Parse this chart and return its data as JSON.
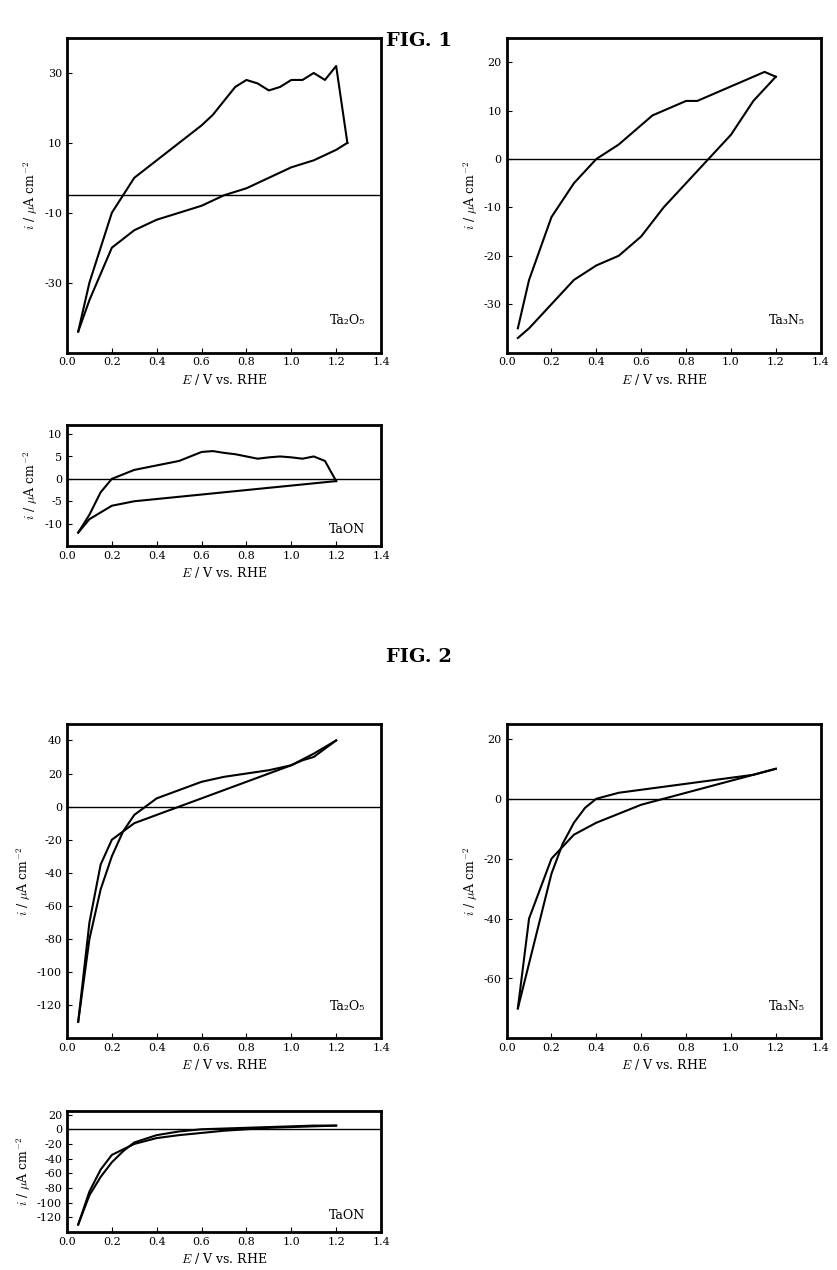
{
  "fig1_title": "FIG. 1",
  "fig2_title": "FIG. 2",
  "xlabel": "E / V vs. RHE",
  "ylabel": "i / μA cm⁻²",
  "background_color": "#ffffff",
  "plots": [
    {
      "label": "Ta₂O₅",
      "ylim": [
        -50,
        40
      ],
      "yticks": [
        -30,
        -10,
        10,
        30
      ],
      "hline": -5,
      "fig": 1,
      "pos": "top_left",
      "anodic": {
        "x": [
          0.05,
          0.1,
          0.2,
          0.3,
          0.4,
          0.5,
          0.6,
          0.65,
          0.7,
          0.75,
          0.8,
          0.85,
          0.9,
          0.95,
          1.0,
          1.05,
          1.1,
          1.15,
          1.2,
          1.25
        ],
        "y": [
          -44,
          -30,
          -10,
          0,
          5,
          10,
          15,
          18,
          22,
          26,
          28,
          27,
          25,
          26,
          28,
          28,
          30,
          28,
          32,
          10
        ]
      },
      "cathodic": {
        "x": [
          1.25,
          1.2,
          1.1,
          1.0,
          0.9,
          0.8,
          0.7,
          0.6,
          0.5,
          0.4,
          0.3,
          0.2,
          0.1,
          0.05
        ],
        "y": [
          10,
          8,
          5,
          3,
          0,
          -3,
          -5,
          -8,
          -10,
          -12,
          -15,
          -20,
          -35,
          -44
        ]
      }
    },
    {
      "label": "Ta₃N₅",
      "ylim": [
        -40,
        25
      ],
      "yticks": [
        -30,
        -20,
        -10,
        0,
        10,
        20
      ],
      "hline": 0,
      "fig": 1,
      "pos": "top_right",
      "anodic": {
        "x": [
          0.05,
          0.1,
          0.2,
          0.3,
          0.4,
          0.5,
          0.55,
          0.6,
          0.65,
          0.7,
          0.75,
          0.8,
          0.85,
          0.9,
          0.95,
          1.0,
          1.05,
          1.1,
          1.15,
          1.2
        ],
        "y": [
          -35,
          -25,
          -12,
          -5,
          0,
          3,
          5,
          7,
          9,
          10,
          11,
          12,
          12,
          13,
          14,
          15,
          16,
          17,
          18,
          17
        ]
      },
      "cathodic": {
        "x": [
          1.2,
          1.1,
          1.0,
          0.9,
          0.8,
          0.7,
          0.6,
          0.5,
          0.4,
          0.3,
          0.2,
          0.1,
          0.05
        ],
        "y": [
          17,
          12,
          5,
          0,
          -5,
          -10,
          -16,
          -20,
          -22,
          -25,
          -30,
          -35,
          -37
        ]
      }
    },
    {
      "label": "TaON",
      "ylim": [
        -15,
        12
      ],
      "yticks": [
        -10,
        -5,
        0,
        5,
        10
      ],
      "hline": 0,
      "fig": 1,
      "pos": "bottom_center",
      "anodic": {
        "x": [
          0.05,
          0.1,
          0.15,
          0.2,
          0.3,
          0.4,
          0.5,
          0.55,
          0.6,
          0.65,
          0.7,
          0.75,
          0.8,
          0.85,
          0.9,
          0.95,
          1.0,
          1.05,
          1.1,
          1.15,
          1.2
        ],
        "y": [
          -12,
          -8,
          -3,
          0,
          2,
          3,
          4,
          5,
          6,
          6.2,
          5.8,
          5.5,
          5,
          4.5,
          4.8,
          5,
          4.8,
          4.5,
          5,
          4,
          -0.5
        ]
      },
      "cathodic": {
        "x": [
          1.2,
          1.1,
          1.0,
          0.9,
          0.8,
          0.7,
          0.6,
          0.5,
          0.4,
          0.3,
          0.2,
          0.1,
          0.05
        ],
        "y": [
          -0.5,
          -1,
          -1.5,
          -2,
          -2.5,
          -3,
          -3.5,
          -4,
          -4.5,
          -5,
          -6,
          -9,
          -12
        ]
      }
    },
    {
      "label": "Ta₂O₅",
      "ylim": [
        -140,
        50
      ],
      "yticks": [
        -120,
        -100,
        -80,
        -60,
        -40,
        -20,
        0,
        20,
        40
      ],
      "hline": 0,
      "fig": 2,
      "pos": "top_left",
      "anodic": {
        "x": [
          0.05,
          0.1,
          0.15,
          0.2,
          0.25,
          0.3,
          0.35,
          0.4,
          0.5,
          0.6,
          0.7,
          0.8,
          0.9,
          1.0,
          1.05,
          1.1,
          1.15,
          1.2
        ],
        "y": [
          -130,
          -80,
          -50,
          -30,
          -15,
          -5,
          0,
          5,
          10,
          15,
          18,
          20,
          22,
          25,
          28,
          30,
          35,
          40
        ]
      },
      "cathodic": {
        "x": [
          1.2,
          1.1,
          1.0,
          0.9,
          0.8,
          0.7,
          0.6,
          0.5,
          0.4,
          0.3,
          0.2,
          0.15,
          0.1,
          0.05
        ],
        "y": [
          40,
          32,
          25,
          20,
          15,
          10,
          5,
          0,
          -5,
          -10,
          -20,
          -35,
          -70,
          -130
        ]
      }
    },
    {
      "label": "Ta₃N₅",
      "ylim": [
        -80,
        25
      ],
      "yticks": [
        -60,
        -40,
        -20,
        0,
        20
      ],
      "hline": 0,
      "fig": 2,
      "pos": "top_right",
      "anodic": {
        "x": [
          0.05,
          0.1,
          0.15,
          0.2,
          0.25,
          0.3,
          0.35,
          0.4,
          0.5,
          0.6,
          0.7,
          0.8,
          0.9,
          1.0,
          1.1,
          1.2
        ],
        "y": [
          -70,
          -55,
          -40,
          -25,
          -15,
          -8,
          -3,
          0,
          2,
          3,
          4,
          5,
          6,
          7,
          8,
          10
        ]
      },
      "cathodic": {
        "x": [
          1.2,
          1.1,
          1.0,
          0.9,
          0.8,
          0.7,
          0.6,
          0.5,
          0.4,
          0.3,
          0.2,
          0.1,
          0.05
        ],
        "y": [
          10,
          8,
          6,
          4,
          2,
          0,
          -2,
          -5,
          -8,
          -12,
          -20,
          -40,
          -70
        ]
      }
    },
    {
      "label": "TaON",
      "ylim": [
        -140,
        25
      ],
      "yticks": [
        -120,
        -100,
        -80,
        -60,
        -40,
        -20,
        0,
        20
      ],
      "hline": 0,
      "fig": 2,
      "pos": "bottom_center",
      "anodic": {
        "x": [
          0.05,
          0.1,
          0.15,
          0.2,
          0.25,
          0.3,
          0.4,
          0.5,
          0.6,
          0.7,
          0.8,
          0.9,
          1.0,
          1.1,
          1.2
        ],
        "y": [
          -130,
          -90,
          -65,
          -45,
          -30,
          -18,
          -8,
          -3,
          0,
          1,
          2,
          3,
          4,
          5,
          5
        ]
      },
      "cathodic": {
        "x": [
          1.2,
          1.1,
          1.0,
          0.9,
          0.8,
          0.7,
          0.6,
          0.5,
          0.4,
          0.3,
          0.2,
          0.15,
          0.1,
          0.05
        ],
        "y": [
          5,
          4,
          3,
          2,
          0,
          -2,
          -5,
          -8,
          -12,
          -20,
          -35,
          -55,
          -85,
          -130
        ]
      }
    }
  ]
}
